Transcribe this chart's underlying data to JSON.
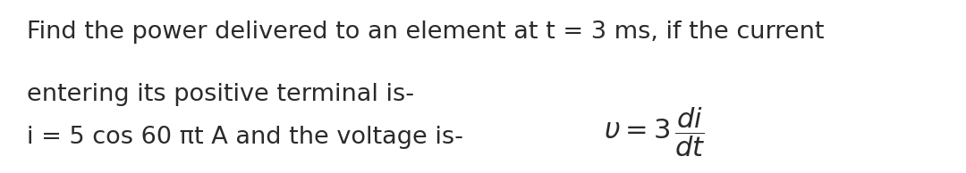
{
  "background_color": "#ffffff",
  "line1": "Find the power delivered to an element at t = 3 ms, if the current",
  "line2": "entering its positive terminal is-",
  "line3_plain": "i = 5 cos 60 πt A and the voltage is- ",
  "fig_width": 10.8,
  "fig_height": 1.94,
  "dpi": 100,
  "text_color": "#2a2a2a",
  "font_size_main": 19.5,
  "font_size_math": 22
}
